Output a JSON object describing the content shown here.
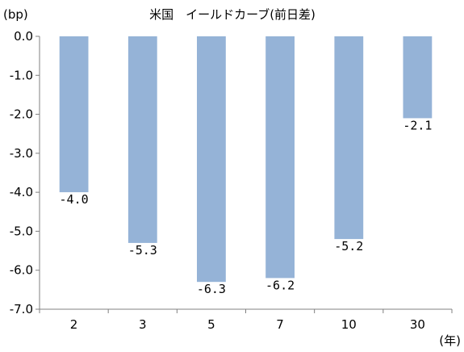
{
  "chart_data": {
    "type": "bar",
    "title": "米国　イールドカーブ(前日差)",
    "ylabel": "(bp)",
    "xlabel": "(年)",
    "categories": [
      "2",
      "3",
      "5",
      "7",
      "10",
      "30"
    ],
    "values": [
      -4.0,
      -5.3,
      -6.3,
      -6.2,
      -5.2,
      -2.1
    ],
    "value_labels": [
      "-4.0",
      "-5.3",
      "-6.3",
      "-6.2",
      "-5.2",
      "-2.1"
    ],
    "ylim": [
      -7.0,
      0.0
    ],
    "yticks": [
      0.0,
      -1.0,
      -2.0,
      -3.0,
      -4.0,
      -5.0,
      -6.0,
      -7.0
    ],
    "ytick_labels": [
      "0.0",
      "-1.0",
      "-2.0",
      "-3.0",
      "-4.0",
      "-5.0",
      "-6.0",
      "-7.0"
    ],
    "grid": false,
    "legend": "none",
    "bar_color": "#95b3d7",
    "axis_color": "#808080"
  }
}
